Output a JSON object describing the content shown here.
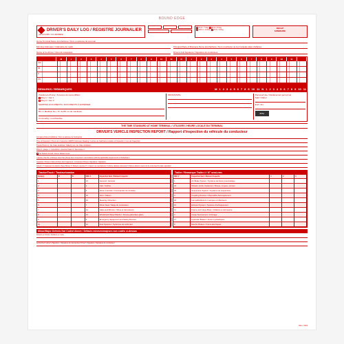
{
  "bound_edge": "BOUND EDGE",
  "title": "DRIVER'S DAILY LOG / REGISTRE JOURNALIER",
  "subtitle": "(24 HOURS / 24 HEURES)",
  "recap": {
    "title": "RECAP",
    "sub": "SOMMAIRE"
  },
  "check_opts": [
    "70 hr / 7 Day",
    "60 hr / 8 Day",
    "120 hr / 14 Day",
    "70 hr / 8 Day"
  ],
  "header_lines": {
    "terminal": "Home Terminal Name and Address / Nom et adresse du terminal",
    "business": "Principal Place of Business Name and Address / Nom et adresse de la principale place d'affaires",
    "morning": "Morning Odometer / Odomètre du matin",
    "evening": "Ending Odometer / Odomètre du soir",
    "distance": "Distance Driven / Distance parcourue",
    "codriver": "Name of Co-Driver / Nom du coéquipier",
    "sig": "Driver's Full Signature / Signature du conducteur",
    "certify": "I certify these entries are true and correct"
  },
  "hours": [
    "M",
    "1",
    "2",
    "3",
    "4",
    "5",
    "6",
    "7",
    "8",
    "9",
    "10",
    "11",
    "N",
    "1",
    "2",
    "3",
    "4",
    "5",
    "6",
    "7",
    "8",
    "9",
    "10",
    "11"
  ],
  "duty_rows": [
    "OFF",
    "SB",
    "D",
    "ON"
  ],
  "remarks": {
    "label": "REMARKS / REMARQUES",
    "deferred": "If deferred off duty / Si temps de repos différé:",
    "day1": "Day 1 / Jour 1",
    "day2": "Day 2 / Jour 2",
    "shipping": "SHIPPING DOCUMENTS / DOCUMENTS À EXPÉDIER:",
    "bol": "B/L or Manifest No. / N° de B/L ou de manifeste",
    "shipper": "Shipper / Expéditeur",
    "commodity": "Commodity / marchandise",
    "prov": "PROV/STATE",
    "pers_use": "Personal Use / Déplacement personnel",
    "start": "Start / Début",
    "end": "End / Fin",
    "black": "8551"
  },
  "time_std": "THE TIME STANDARD AT HOME TERMINAL / UTILISER L'HEURE LOCALE DU TERMINAL",
  "dvir": {
    "title": "DRIVER'S VEHICLE INSPECTION REPORT / Rapport d'inspection du véhicule du conducteur",
    "company": "Company Name & Address / Nom et adresse de l'entreprise",
    "time": "Time of Inspection / Heure de l'inspection   AM/PM   Odometer Reading / Lecture de l'odomètre   Location of Inspection / Lieu de l'inspection",
    "tractor": "Tractor/Truck Lic. No.   Date   Juridiction   Trailer(s) Lic. No.   Date   Juridiction",
    "plate": "Plate # / plaque n°   Jurisdiction / Autorité   Trailer # / Remorque n°",
    "no_defects": "No Defects Found / Aucun défaut trouvé",
    "sig_above": "I declare that the vehicle(s) listed has (have) been inspected in accordance with the applicable requirements of Schedule 1",
    "insp_sig": "Inspector / Driver's Name & Nom de l'inspecteur / conducteur   Driver's Signature / Signature",
    "checks": "Check: ☐ I detected no defects (New Driver) ☐ Defects reported ☐ I detect no new defects ☐ Above defects corrected ☐ Above defects need not be corrected for safe operation"
  },
  "tables": {
    "left_title": "Tractor/Truck / Tracteur/camion",
    "right_title": "Trailer / Remorque   Trailer # / N° semi-rem.",
    "cols_left": [
      "Code(s)",
      "D",
      "B",
      "NSC #",
      "Inspection Item / Élément inspecté"
    ],
    "cols_right": [
      "NSC #",
      "Inspection Item / Élément inspecté",
      "1",
      "2",
      "3"
    ],
    "left_rows": [
      {
        "n": "1",
        "d": "",
        "b": "",
        "nsc": "13",
        "item": "General / Général"
      },
      {
        "n": "2",
        "d": "",
        "b": "",
        "nsc": "2",
        "item": "Cab / Cabine"
      },
      {
        "n": "3",
        "d": "",
        "b": "",
        "nsc": "6",
        "item": "Driver Controls / Commandes de conduite"
      },
      {
        "n": "4",
        "d": "",
        "b": "",
        "nsc": "16",
        "item": "Horn / Klaxon"
      },
      {
        "n": "5",
        "d": "",
        "b": "",
        "nsc": "19",
        "item": "Steering / Direction"
      },
      {
        "n": "6",
        "d": "",
        "b": "",
        "nsc": "7",
        "item": "Driver Seat / Siège du conducteur"
      },
      {
        "n": "7",
        "d": "",
        "b": "",
        "nsc": "14",
        "item": "Glass and Mirrors / Vitres et rétroviseurs"
      },
      {
        "n": "8",
        "d": "",
        "b": "",
        "nsc": "23",
        "item": "Windshield Wiper/Washer / Essuie-glace/lave-glace"
      },
      {
        "n": "9",
        "d": "",
        "b": "",
        "nsc": "9",
        "item": "Emergency Equipment and Safety Devices"
      },
      {
        "n": "10",
        "d": "",
        "b": "",
        "nsc": "12",
        "item": "Fuel Systems / Systèmes de carburant"
      }
    ],
    "right_rows": [
      {
        "nsc": "1",
        "item": "Air Brake System / Système de freins pneumatique"
      },
      {
        "nsc": "22",
        "item": "Wheels, Hubs, Fasteners / Roues, moyeux, écrous"
      },
      {
        "nsc": "20",
        "item": "Suspension System / Système de suspension"
      },
      {
        "nsc": "4",
        "item": "Coupling Devices / Dispositifs d'accouplement"
      },
      {
        "nsc": "18",
        "item": "Lamps/Reflectors / Lampes et réflecteurs"
      },
      {
        "nsc": "10",
        "item": "Exhaust System / Système d'échappement"
      },
      {
        "nsc": "11",
        "item": "Frame and Cargo Body / Châssis et carrosserie"
      },
      {
        "nsc": "3",
        "item": "Cargo Securement / Arrimage"
      },
      {
        "nsc": "17",
        "item": "Hydraulic Brakes / Freins hydrauliques"
      },
      {
        "nsc": "8",
        "item": "Electric Brakes / Freins électriques"
      }
    ]
  },
  "defects_title": "Minor/Major Defects Not Coded Above / Défauts mineurs/majeurs non codés ci-dessus",
  "defects_route": "Defects en Route / Défauts en route",
  "footer_line": "Authorized Carrier's Signature / Signature du transporteur   Driver's Signature / Signature du conducteur",
  "rev": "Rev. 3/13",
  "colors": {
    "red": "#cc0000",
    "pink": "#fde8e8",
    "white": "#ffffff"
  }
}
